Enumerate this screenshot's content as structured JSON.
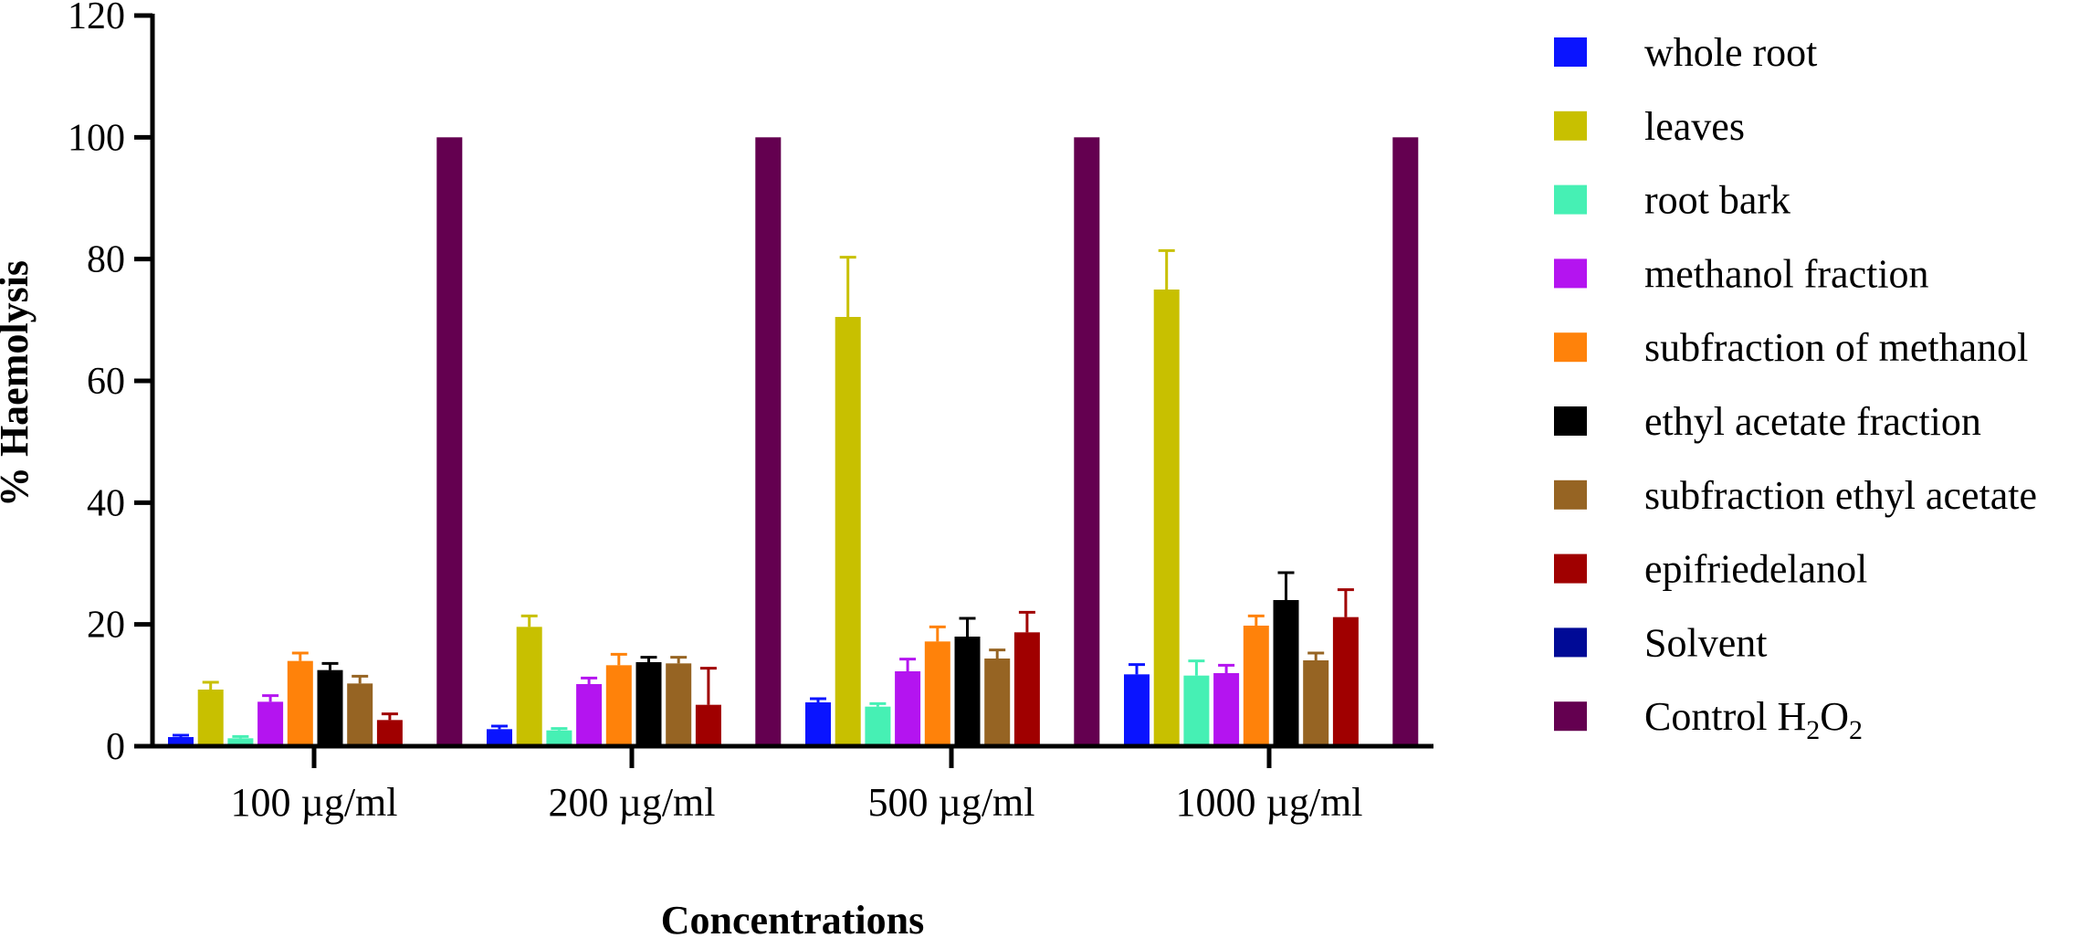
{
  "chart_data": {
    "type": "bar",
    "title": "",
    "xlabel": "Concentrations",
    "ylabel": "% Haemolysis",
    "ylim": [
      0,
      120
    ],
    "yticks": [
      0,
      20,
      40,
      60,
      80,
      100,
      120
    ],
    "categories": [
      "100 µg/ml",
      "200 µg/ml",
      "500 µg/ml",
      "1000 µg/ml"
    ],
    "series": [
      {
        "name": "whole root",
        "color": "#0a14ff",
        "values": [
          1.5,
          2.8,
          7.2,
          11.8
        ],
        "errors": [
          0.3,
          0.5,
          0.6,
          1.6
        ]
      },
      {
        "name": "leaves",
        "color": "#c8c000",
        "values": [
          9.3,
          19.6,
          70.5,
          75.0
        ],
        "errors": [
          1.2,
          1.8,
          9.8,
          6.4
        ]
      },
      {
        "name": "root bark",
        "color": "#46f0b4",
        "values": [
          1.3,
          2.6,
          6.5,
          11.6
        ],
        "errors": [
          0.3,
          0.3,
          0.5,
          2.4
        ]
      },
      {
        "name": "methanol fraction",
        "color": "#b414f0",
        "values": [
          7.3,
          10.2,
          12.3,
          12.0
        ],
        "errors": [
          1.0,
          1.0,
          2.0,
          1.3
        ]
      },
      {
        "name": "subfraction of methanol",
        "color": "#ff820a",
        "values": [
          14.0,
          13.3,
          17.2,
          19.8
        ],
        "errors": [
          1.3,
          1.8,
          2.4,
          1.6
        ]
      },
      {
        "name": "ethyl acetate fraction",
        "color": "#000000",
        "values": [
          12.5,
          13.8,
          18.0,
          24.0
        ],
        "errors": [
          1.1,
          0.8,
          3.0,
          4.5
        ]
      },
      {
        "name": "subfraction ethyl acetate",
        "color": "#966423",
        "values": [
          10.3,
          13.6,
          14.4,
          14.1
        ],
        "errors": [
          1.2,
          1.0,
          1.4,
          1.2
        ]
      },
      {
        "name": "epifriedelanol",
        "color": "#a00000",
        "values": [
          4.3,
          6.8,
          18.7,
          21.2
        ],
        "errors": [
          1.0,
          6.0,
          3.3,
          4.5
        ]
      },
      {
        "name": "Solvent",
        "color": "#000a96",
        "values": [
          0.3,
          0.0,
          0.0,
          0.2
        ],
        "errors": [
          0,
          0,
          0,
          0
        ]
      },
      {
        "name": "Control H2O2",
        "color": "#640050",
        "values": [
          100,
          100,
          100,
          100
        ],
        "errors": [
          0,
          0,
          0,
          0
        ]
      }
    ],
    "legend": {
      "position": "right",
      "entries": [
        "whole root",
        "leaves",
        "root bark",
        "methanol fraction",
        "subfraction of methanol",
        "ethyl acetate fraction",
        "subfraction ethyl acetate",
        "epifriedelanol",
        "Solvent",
        "Control H2O2"
      ],
      "control_label_parts": {
        "prefix": "Control H",
        "sub1": "2",
        "mid": "O",
        "sub2": "2"
      }
    },
    "grid": false
  }
}
